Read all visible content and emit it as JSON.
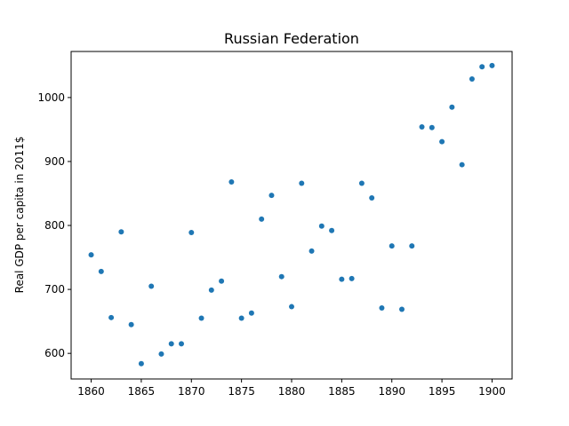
{
  "chart_data": {
    "type": "scatter",
    "title": "Russian Federation",
    "xlabel": "",
    "ylabel": "Real GDP per capita in 2011$",
    "xlim": [
      1858,
      1902
    ],
    "ylim": [
      560,
      1072
    ],
    "xticks": [
      1860,
      1865,
      1870,
      1875,
      1880,
      1885,
      1890,
      1895,
      1900
    ],
    "yticks": [
      600,
      700,
      800,
      900,
      1000
    ],
    "grid": false,
    "legend": "none",
    "marker_color": "#1f77b4",
    "x": [
      1860,
      1861,
      1862,
      1863,
      1864,
      1865,
      1866,
      1867,
      1868,
      1869,
      1870,
      1871,
      1872,
      1873,
      1874,
      1875,
      1876,
      1877,
      1878,
      1879,
      1880,
      1881,
      1882,
      1883,
      1884,
      1885,
      1886,
      1887,
      1888,
      1889,
      1890,
      1891,
      1892,
      1893,
      1894,
      1895,
      1896,
      1897,
      1898,
      1899,
      1900
    ],
    "y": [
      754,
      728,
      656,
      790,
      645,
      584,
      705,
      599,
      615,
      615,
      789,
      655,
      699,
      713,
      868,
      655,
      663,
      810,
      847,
      720,
      673,
      866,
      760,
      799,
      792,
      716,
      717,
      866,
      843,
      671,
      768,
      669,
      768,
      954,
      953,
      931,
      985,
      895,
      1029,
      1048,
      1050
    ]
  }
}
